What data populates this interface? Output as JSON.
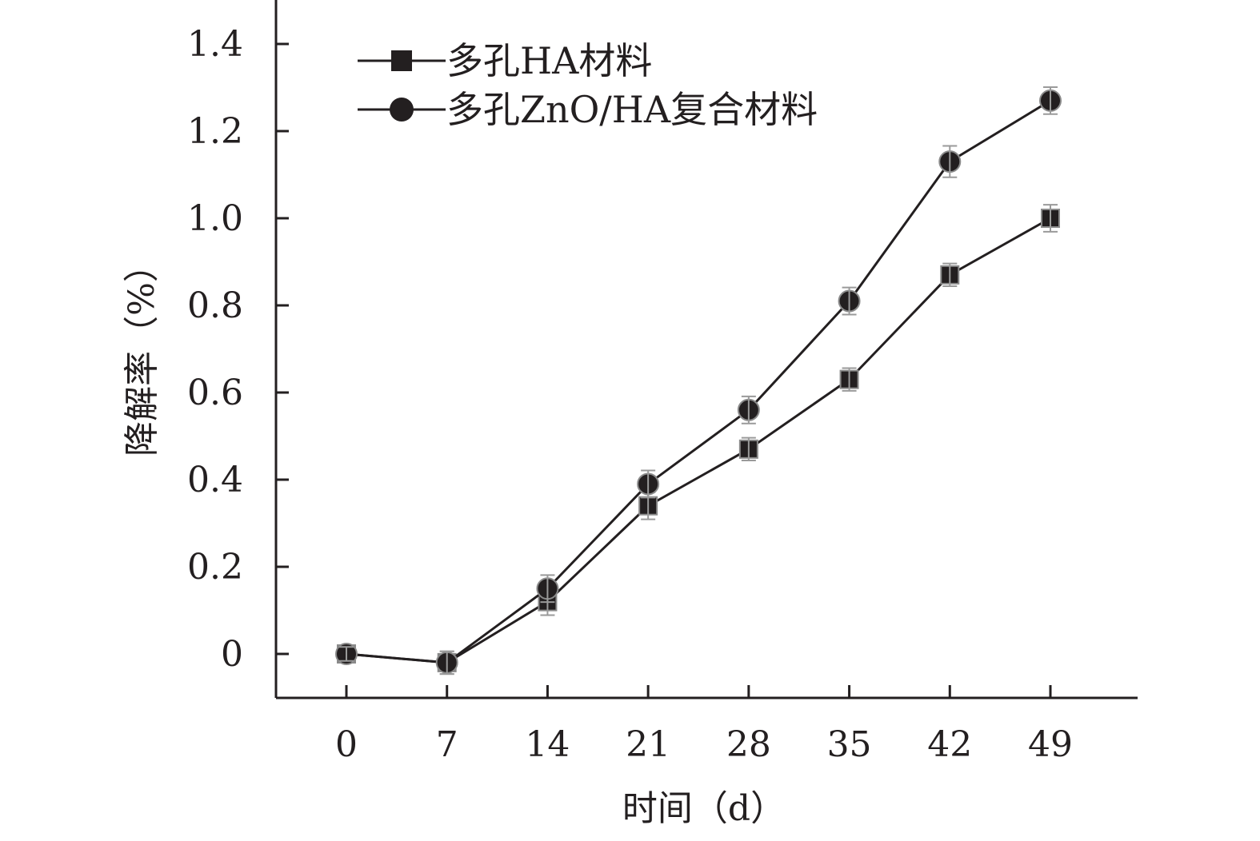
{
  "chart_data": {
    "type": "line",
    "title": "",
    "xlabel": "时间（d）",
    "ylabel": "降解率（%）",
    "x": [
      0,
      7,
      14,
      21,
      28,
      35,
      42,
      49
    ],
    "x_tick_labels": [
      "0",
      "7",
      "14",
      "21",
      "28",
      "35",
      "42",
      "49"
    ],
    "y_tick_labels": [
      "0",
      "0.2",
      "0.4",
      "0.6",
      "0.8",
      "1.0",
      "1.2",
      "1.4"
    ],
    "y_ticks": [
      0,
      0.2,
      0.4,
      0.6,
      0.8,
      1.0,
      1.2,
      1.4
    ],
    "xlim": [
      -5,
      55
    ],
    "ylim": [
      -0.1,
      1.5
    ],
    "grid": false,
    "legend_position": "top-left",
    "series": [
      {
        "name": "多孔HA材料",
        "marker": "square",
        "color": "#231f20",
        "values": [
          0,
          -0.02,
          0.12,
          0.34,
          0.47,
          0.63,
          0.87,
          1.0
        ],
        "errors": [
          0.005,
          0.015,
          0.02,
          0.02,
          0.015,
          0.015,
          0.015,
          0.02
        ]
      },
      {
        "name": "多孔ZnO/HA复合材料",
        "marker": "circle",
        "color": "#231f20",
        "values": [
          0,
          -0.02,
          0.15,
          0.39,
          0.56,
          0.81,
          1.13,
          1.27
        ],
        "errors": [
          0.005,
          0.015,
          0.02,
          0.02,
          0.02,
          0.02,
          0.025,
          0.02
        ]
      }
    ]
  }
}
